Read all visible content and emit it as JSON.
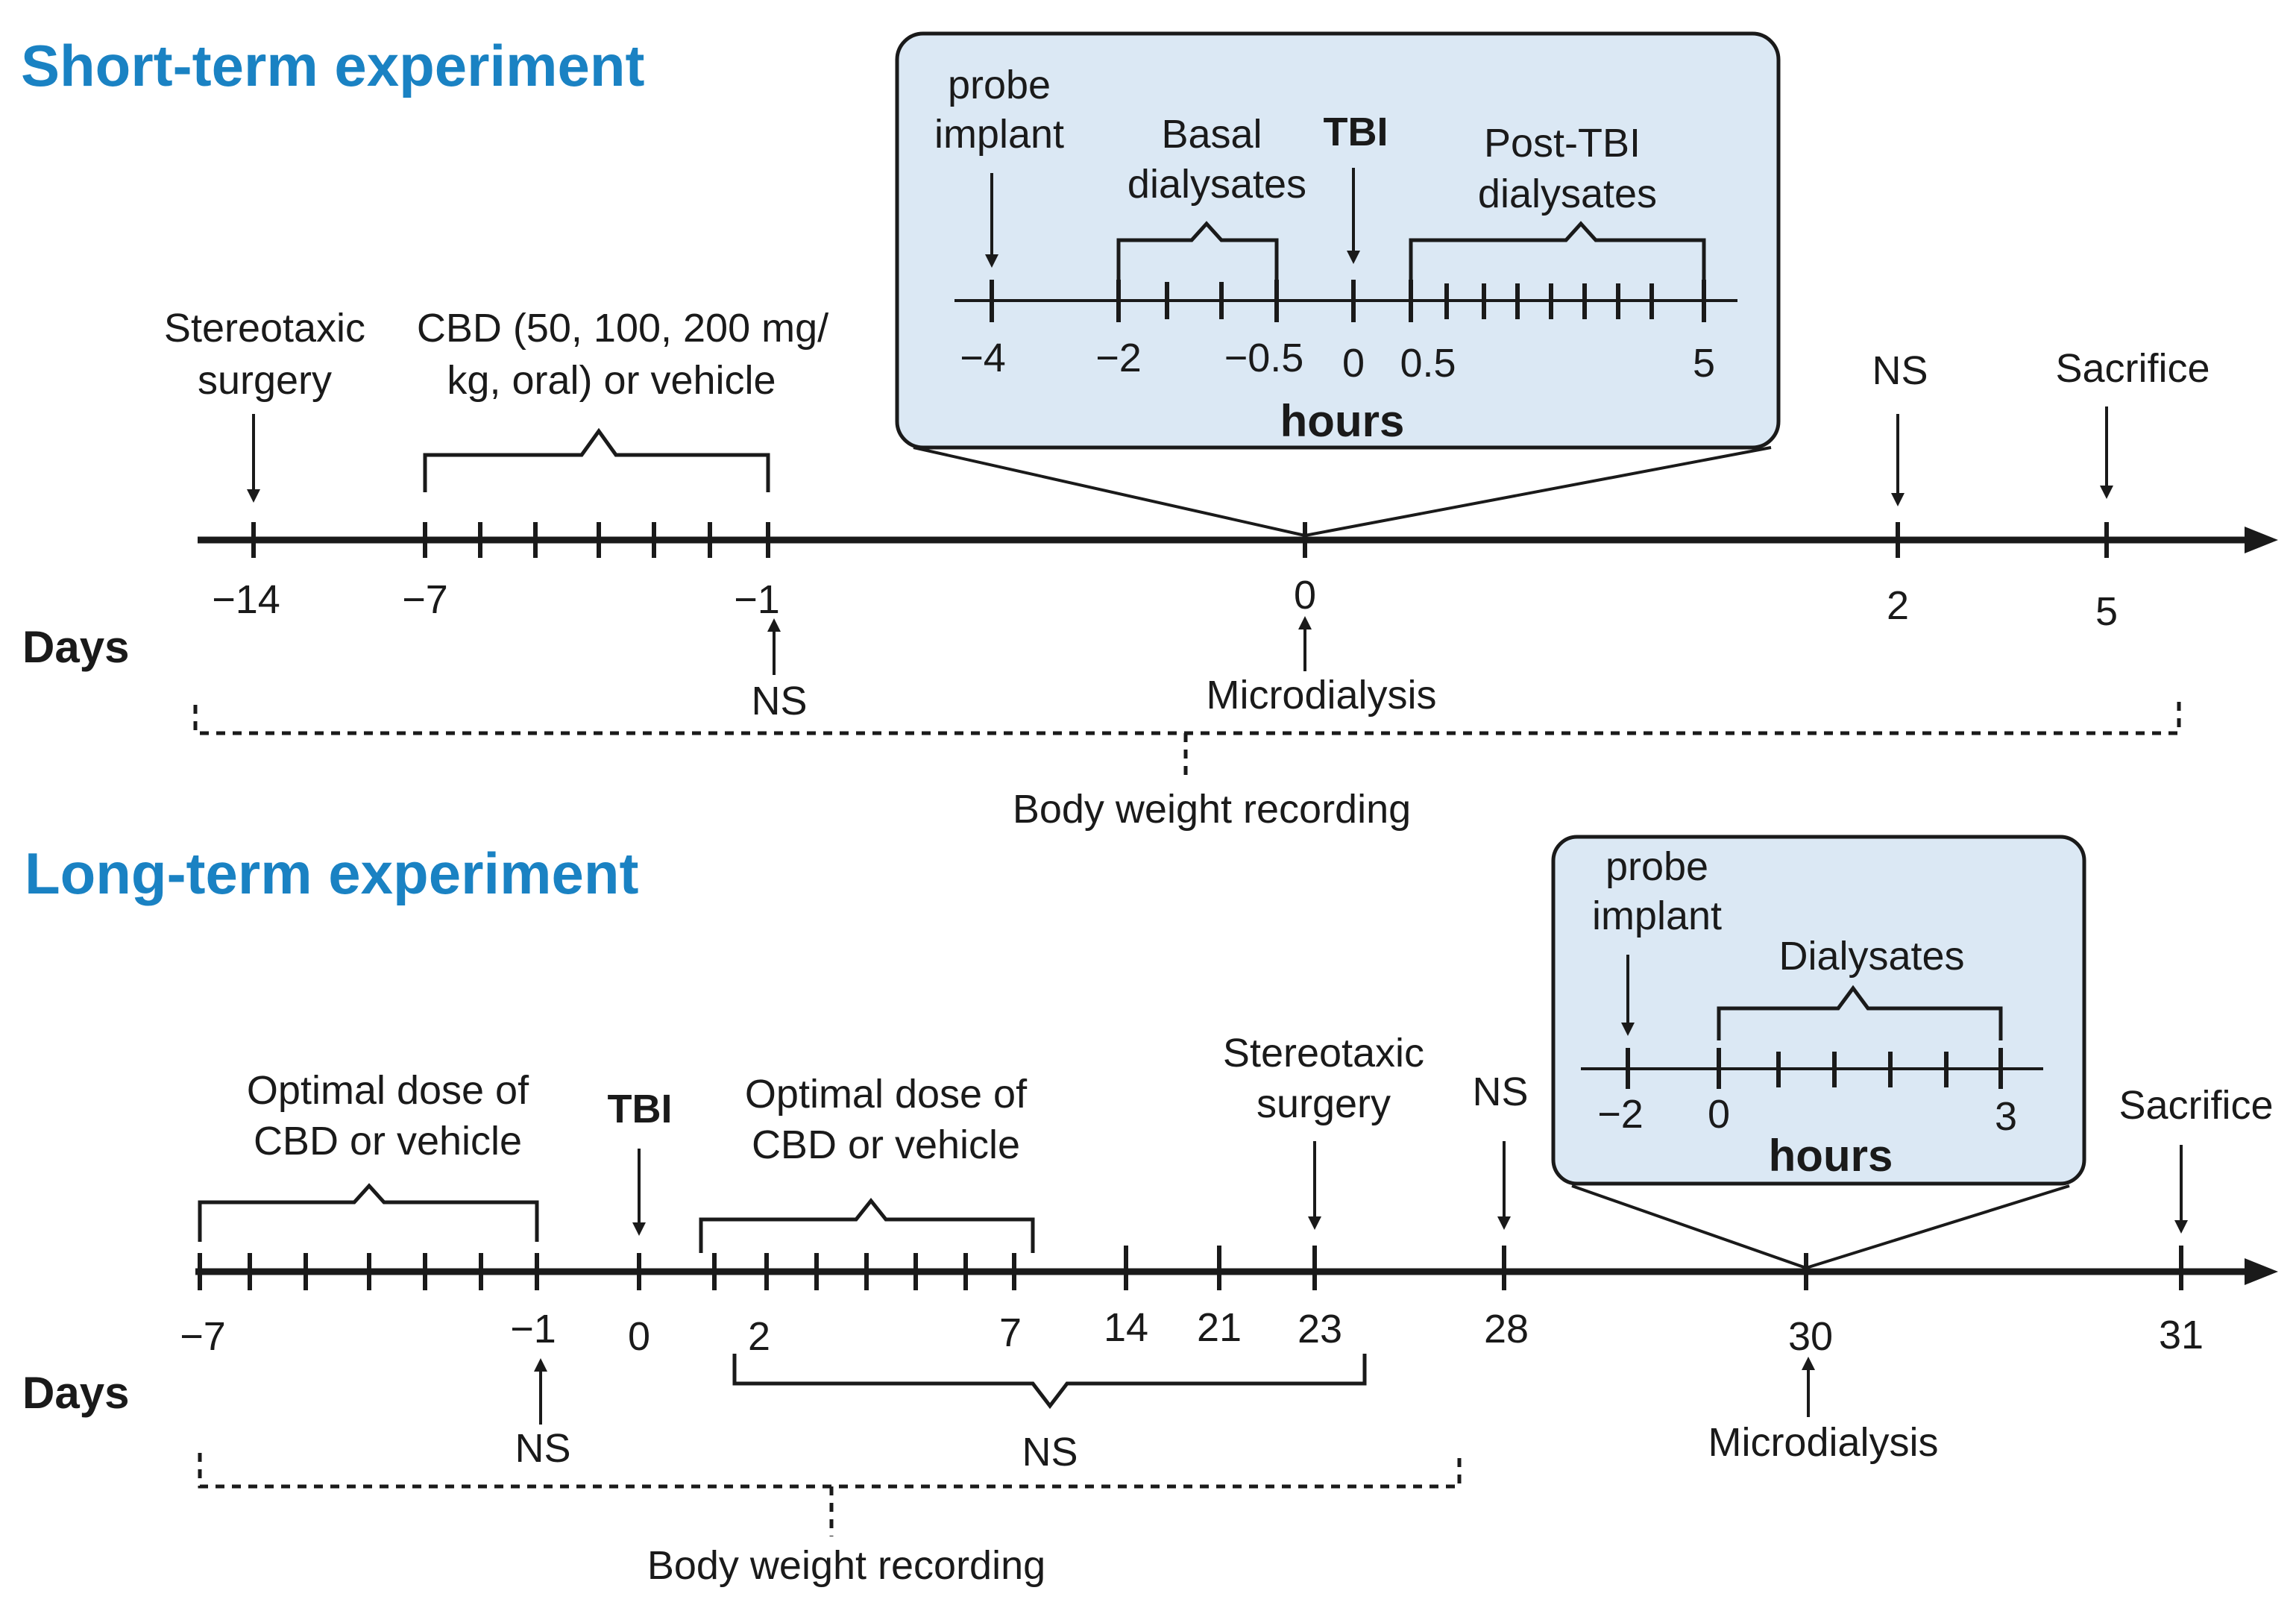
{
  "colors": {
    "title": "#1a82c3",
    "inset_fill": "#dbe8f4",
    "ink": "#1a1a1a"
  },
  "short": {
    "title": "Short-term experiment",
    "axis_label": "Days",
    "ticks": {
      "m14": "−14",
      "m7": "−7",
      "m1": "−1",
      "d0": "0",
      "d2": "2",
      "d5": "5"
    },
    "events": {
      "stereotaxic_1": "Stereotaxic",
      "stereotaxic_2": "surgery",
      "cbd_1": "CBD (50, 100, 200 mg/",
      "cbd_2": "kg, oral) or vehicle",
      "ns_top": "NS",
      "sacrifice": "Sacrifice",
      "ns_bottom": "NS",
      "microdialysis": "Microdialysis",
      "body_weight": "Body weight recording"
    },
    "inset": {
      "probe_1": "probe",
      "probe_2": "implant",
      "basal_1": "Basal",
      "basal_2": "dialysates",
      "tbi": "TBI",
      "post_1": "Post-TBI",
      "post_2": "dialysates",
      "ticks": {
        "m4": "−4",
        "m2": "−2",
        "m05": "−0.5",
        "z": "0",
        "p05": "0.5",
        "p5": "5"
      },
      "unit": "hours"
    }
  },
  "long": {
    "title": "Long-term experiment",
    "axis_label": "Days",
    "ticks": {
      "m7": "−7",
      "m1": "−1",
      "d0": "0",
      "d2": "2",
      "d7": "7",
      "d14": "14",
      "d21": "21",
      "d23": "23",
      "d28": "28",
      "d30": "30",
      "d31": "31"
    },
    "events": {
      "opt1_1": "Optimal dose of",
      "opt1_2": "CBD or vehicle",
      "tbi": "TBI",
      "opt2_1": "Optimal dose of",
      "opt2_2": "CBD or vehicle",
      "stereo_1": "Stereotaxic",
      "stereo_2": "surgery",
      "ns_top": "NS",
      "sacrifice": "Sacrifice",
      "ns_m1": "NS",
      "ns_range": "NS",
      "microdialysis": "Microdialysis",
      "body_weight": "Body weight recording"
    },
    "inset": {
      "probe_1": "probe",
      "probe_2": "implant",
      "dialysates": "Dialysates",
      "ticks": {
        "m2": "−2",
        "z": "0",
        "p3": "3"
      },
      "unit": "hours"
    }
  }
}
